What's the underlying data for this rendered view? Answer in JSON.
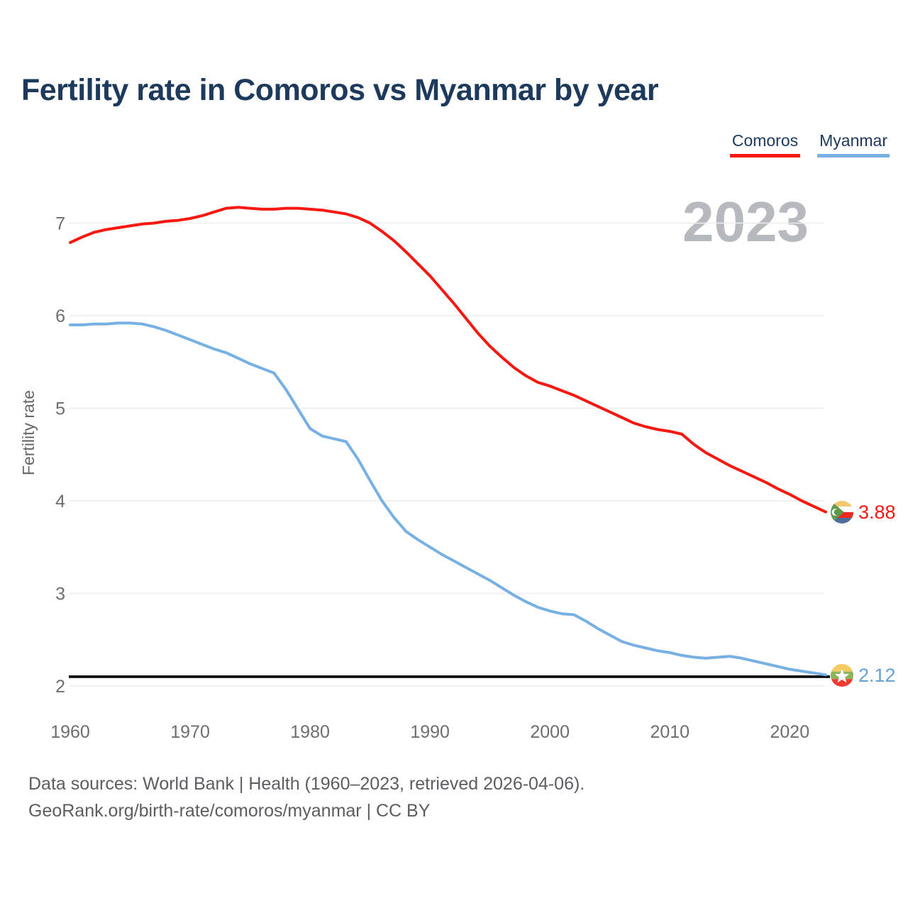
{
  "title": "Fertility rate in Comoros vs Myanmar by year",
  "watermark": "2023",
  "legend": [
    {
      "label": "Comoros",
      "color": "#f7190f"
    },
    {
      "label": "Myanmar",
      "color": "#77b1e3"
    }
  ],
  "end_labels": {
    "comoros": {
      "value": "3.88",
      "color": "#f7190f"
    },
    "myanmar": {
      "value": "2.12",
      "color": "#62a4da"
    }
  },
  "footer": {
    "line1": "Data sources: World Bank | Health (1960–2023, retrieved 2026-04-06).",
    "line2": "GeoRank.org/birth-rate/comoros/myanmar | CC BY"
  },
  "chart_data": {
    "type": "line",
    "title": "Fertility rate in Comoros vs Myanmar by year",
    "xlabel": "",
    "ylabel": "Fertility rate",
    "x_start": 1960,
    "x_end": 2023,
    "x_ticks": [
      1960,
      1970,
      1980,
      1990,
      2000,
      2010,
      2020
    ],
    "y_ticks": [
      2,
      3,
      4,
      5,
      6,
      7
    ],
    "ylim": [
      2,
      7.2
    ],
    "grid": "horizontal",
    "legend_position": "top-right",
    "reference_line": {
      "value": 2.1,
      "color": "#000000"
    },
    "series": [
      {
        "name": "Comoros",
        "color": "#f7190f",
        "values": [
          6.79,
          6.85,
          6.9,
          6.93,
          6.95,
          6.97,
          6.99,
          7.0,
          7.02,
          7.03,
          7.05,
          7.08,
          7.12,
          7.16,
          7.17,
          7.16,
          7.15,
          7.15,
          7.16,
          7.16,
          7.15,
          7.14,
          7.12,
          7.1,
          7.06,
          7.0,
          6.91,
          6.81,
          6.69,
          6.56,
          6.43,
          6.28,
          6.13,
          5.97,
          5.81,
          5.67,
          5.55,
          5.44,
          5.35,
          5.28,
          5.24,
          5.19,
          5.14,
          5.08,
          5.02,
          4.96,
          4.9,
          4.84,
          4.8,
          4.77,
          4.75,
          4.72,
          4.61,
          4.52,
          4.45,
          4.38,
          4.32,
          4.26,
          4.2,
          4.13,
          4.07,
          4.0,
          3.94,
          3.88
        ]
      },
      {
        "name": "Myanmar",
        "color": "#77b1e3",
        "values": [
          5.9,
          5.9,
          5.91,
          5.91,
          5.92,
          5.92,
          5.91,
          5.88,
          5.84,
          5.79,
          5.74,
          5.69,
          5.64,
          5.6,
          5.54,
          5.48,
          5.43,
          5.38,
          5.2,
          4.99,
          4.78,
          4.7,
          4.67,
          4.64,
          4.45,
          4.22,
          4.0,
          3.82,
          3.67,
          3.58,
          3.5,
          3.42,
          3.35,
          3.28,
          3.21,
          3.14,
          3.06,
          2.98,
          2.91,
          2.85,
          2.81,
          2.78,
          2.77,
          2.7,
          2.62,
          2.55,
          2.48,
          2.44,
          2.41,
          2.38,
          2.36,
          2.33,
          2.31,
          2.3,
          2.31,
          2.32,
          2.3,
          2.27,
          2.24,
          2.21,
          2.18,
          2.16,
          2.14,
          2.12
        ]
      }
    ]
  }
}
